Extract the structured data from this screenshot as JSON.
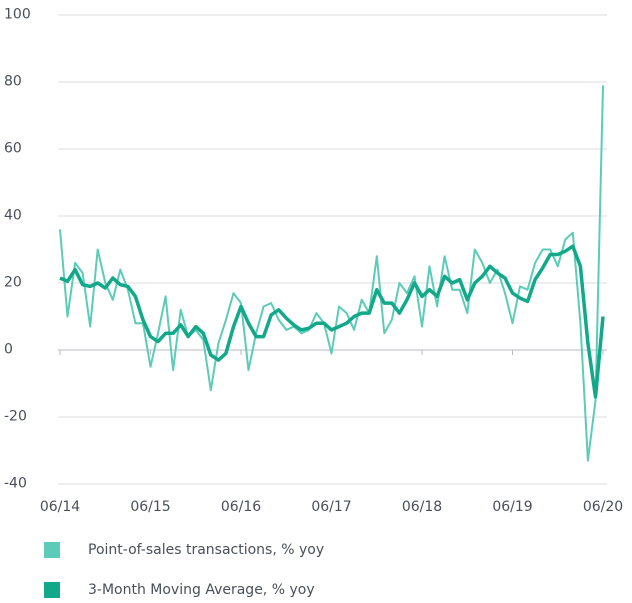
{
  "chart_data": {
    "type": "line",
    "categories": [
      "06/14",
      null,
      null,
      null,
      null,
      null,
      null,
      null,
      null,
      null,
      null,
      null,
      "06/15",
      null,
      null,
      null,
      null,
      null,
      null,
      null,
      null,
      null,
      null,
      null,
      "06/16",
      null,
      null,
      null,
      null,
      null,
      null,
      null,
      null,
      null,
      null,
      null,
      "06/17",
      null,
      null,
      null,
      null,
      null,
      null,
      null,
      null,
      null,
      null,
      null,
      "06/18",
      null,
      null,
      null,
      null,
      null,
      null,
      null,
      null,
      null,
      null,
      null,
      "06/19",
      null,
      null,
      null,
      null,
      null,
      null,
      null,
      null,
      null,
      null,
      null,
      "06/20"
    ],
    "series": [
      {
        "name": "Point-of-sales transactions, % yoy",
        "color": "#5ccbb8",
        "width": 2,
        "values": [
          36,
          10,
          26,
          23,
          7,
          30,
          20,
          15,
          24,
          18,
          8,
          8,
          -5,
          5,
          16,
          -6,
          12,
          4,
          6,
          3,
          -12,
          2,
          9,
          17,
          14,
          -6,
          5,
          13,
          14,
          9,
          6,
          7,
          5,
          6,
          11,
          8,
          -1,
          13,
          11,
          6,
          15,
          11,
          28,
          5,
          9,
          20,
          17,
          22,
          7,
          25,
          13,
          28,
          18,
          18,
          11,
          30,
          26,
          20,
          24,
          17,
          8,
          19,
          18,
          26,
          30,
          30,
          25,
          33,
          35,
          8,
          -33,
          -15,
          79
        ]
      },
      {
        "name": "3-Month Moving Average, % yoy",
        "color": "#12a88a",
        "width": 3.5,
        "values": [
          21.5,
          20.5,
          24,
          19.5,
          19,
          20,
          18.5,
          21.5,
          19.5,
          19,
          16,
          9,
          4,
          2.5,
          5,
          5,
          7.5,
          4,
          7,
          5,
          -1.5,
          -3,
          -1,
          7,
          13,
          8,
          4,
          4,
          10.5,
          12,
          9.5,
          7.5,
          6,
          6.5,
          8,
          8,
          6,
          7,
          8,
          10,
          11,
          11,
          18,
          14,
          14,
          11,
          15,
          20,
          16,
          18,
          16,
          22,
          20,
          21,
          15,
          20,
          22,
          25,
          23,
          21.5,
          17,
          15.5,
          14.5,
          21,
          24.5,
          28.5,
          28.5,
          29.5,
          31,
          25,
          2,
          -14,
          10
        ]
      }
    ],
    "ylim": [
      -40,
      100
    ],
    "yticks": [
      -40,
      -20,
      0,
      20,
      40,
      60,
      80,
      100
    ],
    "grid": true
  }
}
